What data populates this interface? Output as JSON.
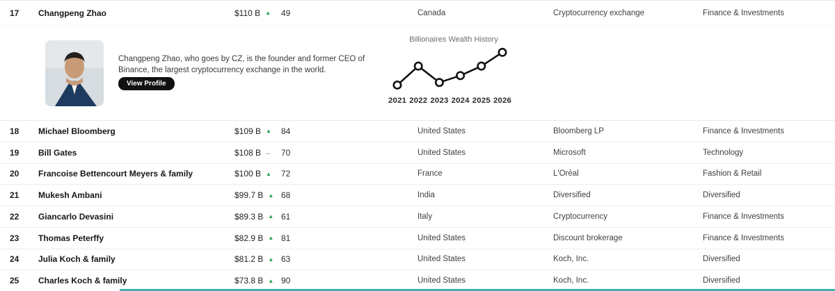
{
  "table": {
    "rows": [
      {
        "rank": "17",
        "name": "Changpeng Zhao",
        "net_worth": "$110 B",
        "change": "up",
        "age": "49",
        "country": "Canada",
        "source": "Cryptocurrency exchange",
        "industry": "Finance & Investments",
        "expanded": true
      },
      {
        "rank": "18",
        "name": "Michael Bloomberg",
        "net_worth": "$109 B",
        "change": "up",
        "age": "84",
        "country": "United States",
        "source": "Bloomberg LP",
        "industry": "Finance & Investments"
      },
      {
        "rank": "19",
        "name": "Bill Gates",
        "net_worth": "$108 B",
        "change": "flat",
        "age": "70",
        "country": "United States",
        "source": "Microsoft",
        "industry": "Technology"
      },
      {
        "rank": "20",
        "name": "Francoise Bettencourt Meyers & family",
        "net_worth": "$100 B",
        "change": "up",
        "age": "72",
        "country": "France",
        "source": "L'Oréal",
        "industry": "Fashion & Retail"
      },
      {
        "rank": "21",
        "name": "Mukesh Ambani",
        "net_worth": "$99.7 B",
        "change": "up",
        "age": "68",
        "country": "India",
        "source": "Diversified",
        "industry": "Diversified"
      },
      {
        "rank": "22",
        "name": "Giancarlo Devasini",
        "net_worth": "$89.3 B",
        "change": "up",
        "age": "61",
        "country": "Italy",
        "source": "Cryptocurrency",
        "industry": "Finance & Investments"
      },
      {
        "rank": "23",
        "name": "Thomas Peterffy",
        "net_worth": "$82.9 B",
        "change": "up",
        "age": "81",
        "country": "United States",
        "source": "Discount brokerage",
        "industry": "Finance & Investments"
      },
      {
        "rank": "24",
        "name": "Julia Koch & family",
        "net_worth": "$81.2 B",
        "change": "up",
        "age": "63",
        "country": "United States",
        "source": "Koch, Inc.",
        "industry": "Diversified"
      },
      {
        "rank": "25",
        "name": "Charles Koch & family",
        "net_worth": "$73.8 B",
        "change": "up",
        "age": "90",
        "country": "United States",
        "source": "Koch, Inc.",
        "industry": "Diversified"
      }
    ],
    "change_up_glyph": "▲",
    "change_flat_glyph": "–"
  },
  "expanded": {
    "description": "Changpeng Zhao, who goes by CZ, is the founder and former CEO of Binance, the largest cryptocurrency exchange in the world.",
    "view_profile_label": "View Profile"
  },
  "chart_data": {
    "type": "line",
    "title": "Billionaires Wealth History",
    "x": [
      "2021",
      "2022",
      "2023",
      "2024",
      "2025",
      "2026"
    ],
    "values": [
      17,
      61,
      23,
      39,
      61,
      93
    ],
    "ylim": [
      0,
      100
    ],
    "grid": false,
    "legend": false,
    "marker": "open-circle",
    "line_color": "#111111"
  },
  "colors": {
    "up_green": "#1f9d55",
    "flat_gray": "#8c8c8c",
    "button_bg": "#111111",
    "chart_title_gray": "#6d6d6d",
    "bottom_bar_teal": "#2fa9a2"
  }
}
